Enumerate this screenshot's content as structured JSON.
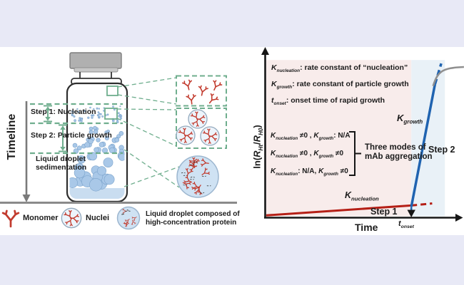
{
  "palette": {
    "margin_bar": "#e8e9f6",
    "accent_green": "#6fae8e",
    "monomer_red": "#c23b2e",
    "nucleation_line_red": "#b51f16",
    "growth_line_blue": "#1f63b0",
    "plateau_gray": "#8f8f8f",
    "droplet_fill": "#cfe2f3",
    "droplet_stroke": "#9cb6cf",
    "particle_fill": "#a9c8e8",
    "particle_stroke": "#7ba3cb",
    "cap_gray": "#b0b0b0",
    "timeline_gray": "#7a7a7a"
  },
  "figure": {
    "left": {
      "timeline_label": "Timeline",
      "step1_label": "Step 1: Nucleation",
      "step2_label": "Step 2: Particle growth",
      "sediment_line1": "Liquid droplet",
      "sediment_line2": "sedimentation",
      "legend": {
        "monomer": "Monomer",
        "nuclei": "Nuclei",
        "droplet_line1": "Liquid droplet composed of",
        "droplet_line2": "high-concentration protein"
      }
    },
    "right": {
      "ylabel": {
        "pre": "ln(",
        "sym1": "R",
        "sub1": "Ht",
        "mid": "/",
        "sym2": "R",
        "sub2": "H0",
        "post": ")"
      },
      "xlabel": "Time",
      "definitions": [
        {
          "sym": "K",
          "sub": "nucleation",
          "rest": ": rate constant of “nucleation”"
        },
        {
          "sym": "K",
          "sub": "growth",
          "rest": ": rate constant of particle growth"
        },
        {
          "sym": "t",
          "sub": "onset",
          "rest": ": onset time of rapid growth"
        }
      ],
      "modes": [
        {
          "sym1": "K",
          "sub1": "nucleation",
          "mid": " ≠0 , ",
          "sym2": "K",
          "sub2": "growth",
          "end": ": N/A"
        },
        {
          "sym1": "K",
          "sub1": "nucleation",
          "mid": " ≠0 , ",
          "sym2": "K",
          "sub2": "growth",
          "end": " ≠0"
        },
        {
          "sym1": "K",
          "sub1": "nucleation",
          "mid": ": N/A, ",
          "sym2": "K",
          "sub2": "growth",
          "end": " ≠0"
        }
      ],
      "modes_brace_line1": "Three modes of",
      "modes_brace_line2": "mAb aggregation",
      "k_growth_label": {
        "sym": "K",
        "sub": "growth"
      },
      "k_nucleation_label": {
        "sym": "K",
        "sub": "nucleation"
      },
      "step1_label": "Step 1",
      "step2_label": "Step 2",
      "t_onset_label": {
        "sym": "t",
        "sub": "onset"
      }
    }
  },
  "chart_data": {
    "type": "line",
    "title": "Two-step mAb aggregation kinetics (conceptual)",
    "xlabel": "Time",
    "ylabel": "ln(R_Ht / R_H0)",
    "x_axis_numeric": false,
    "y_axis_numeric": false,
    "xlim": [
      0,
      10.9
    ],
    "ylim": [
      0,
      9.4
    ],
    "x_markers": [
      {
        "label": "t_onset",
        "x": 8
      }
    ],
    "regions": [
      {
        "name": "step-1-nucleation",
        "x0": 0,
        "x1": 8,
        "y0": 0,
        "y1": 9,
        "color": "#f8eceb"
      },
      {
        "name": "step-2-growth",
        "x0": 8,
        "x1": 9.85,
        "y0": 0,
        "y1": 9,
        "color": "#e9f1f7"
      }
    ],
    "series": [
      {
        "name": "K_nucleation (Step 1, slow growth)",
        "color": "#b51f16",
        "style": "solid",
        "width": 3,
        "points": [
          [
            0,
            0.05
          ],
          [
            8,
            0.62
          ]
        ]
      },
      {
        "name": "K_nucleation extrapolation",
        "color": "#b51f16",
        "style": "dashed",
        "width": 3,
        "points": [
          [
            8,
            0.62
          ],
          [
            9.15,
            0.74
          ]
        ]
      },
      {
        "name": "K_growth (Step 2, rapid growth)",
        "color": "#1f63b0",
        "style": "solid",
        "width": 3.5,
        "points": [
          [
            8,
            0.55
          ],
          [
            9.3,
            7.6
          ]
        ]
      },
      {
        "name": "K_growth extrapolation",
        "color": "#1f63b0",
        "style": "dashed",
        "width": 3.5,
        "points": [
          [
            9.3,
            7.6
          ],
          [
            9.65,
            8.8
          ]
        ]
      },
      {
        "name": "observed plateau",
        "color": "#8f8f8f",
        "style": "solid",
        "width": 2.6,
        "bezier": [
          [
            9.2,
            7.5
          ],
          [
            9.45,
            8.35
          ],
          [
            9.7,
            8.55
          ],
          [
            10.9,
            8.6
          ]
        ]
      },
      {
        "name": "t_onset drop line",
        "color": "#1f63b0",
        "style": "dotted",
        "width": 2.6,
        "points": [
          [
            8,
            0.5
          ],
          [
            8,
            0.14
          ]
        ]
      }
    ]
  }
}
